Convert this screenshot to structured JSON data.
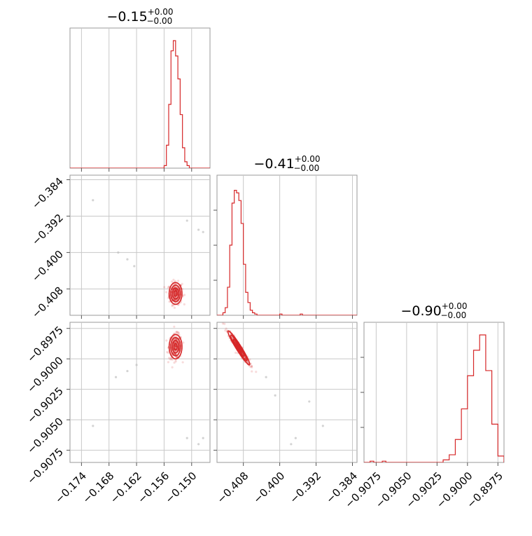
{
  "chart_data": {
    "type": "corner",
    "color": "#d62728",
    "parameters": [
      {
        "title_value": "−0.15",
        "title_upper": "+0.00",
        "title_lower": "−0.00",
        "range": [
          -0.1765,
          -0.146
        ],
        "ticks": [
          -0.174,
          -0.168,
          -0.162,
          -0.156,
          -0.15
        ],
        "tick_labels": [
          "−0.174",
          "−0.168",
          "−0.162",
          "−0.156",
          "−0.150"
        ]
      },
      {
        "title_value": "−0.41",
        "title_upper": "+0.00",
        "title_lower": "−0.00",
        "range": [
          -0.4138,
          -0.383
        ],
        "ticks": [
          -0.408,
          -0.4,
          -0.392,
          -0.384
        ],
        "tick_labels": [
          "−0.408",
          "−0.400",
          "−0.392",
          "−0.384"
        ]
      },
      {
        "title_value": "−0.90",
        "title_upper": "+0.00",
        "title_lower": "−0.00",
        "range": [
          -0.9085,
          -0.897
        ],
        "ticks": [
          -0.9075,
          -0.905,
          -0.9025,
          -0.9,
          -0.8975
        ],
        "tick_labels": [
          "−0.9075",
          "−0.9050",
          "−0.9025",
          "−0.9000",
          "−0.8975"
        ]
      }
    ],
    "diagonal_histograms": [
      {
        "param": 0,
        "bin_edges": [
          -0.1765,
          -0.156,
          -0.1555,
          -0.155,
          -0.1545,
          -0.154,
          -0.1535,
          -0.153,
          -0.1525,
          -0.152,
          -0.1515,
          -0.151,
          -0.1505,
          -0.146
        ],
        "counts": [
          0.0,
          0.02,
          0.18,
          0.5,
          0.92,
          1.0,
          0.88,
          0.7,
          0.42,
          0.16,
          0.05,
          0.02,
          0.0
        ]
      },
      {
        "param": 1,
        "bin_edges": [
          -0.4138,
          -0.4125,
          -0.412,
          -0.4115,
          -0.411,
          -0.4105,
          -0.41,
          -0.4095,
          -0.409,
          -0.4085,
          -0.408,
          -0.4075,
          -0.407,
          -0.4065,
          -0.406,
          -0.4055,
          -0.405,
          -0.4,
          -0.3995,
          -0.3955,
          -0.395,
          -0.383
        ],
        "counts": [
          0.0,
          0.02,
          0.06,
          0.22,
          0.55,
          0.88,
          0.98,
          0.96,
          0.9,
          0.72,
          0.4,
          0.18,
          0.1,
          0.04,
          0.02,
          0.01,
          0.0,
          0.01,
          0.0,
          0.01,
          0.0
        ]
      },
      {
        "param": 2,
        "bin_edges": [
          -0.9085,
          -0.908,
          -0.9077,
          -0.907,
          -0.9067,
          -0.902,
          -0.9015,
          -0.901,
          -0.9005,
          -0.9,
          -0.8995,
          -0.899,
          -0.8985,
          -0.898,
          -0.8975,
          -0.897
        ],
        "counts": [
          0.0,
          0.01,
          0.0,
          0.01,
          0.0,
          0.02,
          0.06,
          0.18,
          0.42,
          0.68,
          0.88,
          1.0,
          0.72,
          0.3,
          0.05,
          0.0
        ]
      }
    ],
    "scatter_panels": [
      {
        "x_param": 0,
        "y_param": 1,
        "center": [
          -0.1535,
          -0.409
        ],
        "std": [
          0.0007,
          0.0012
        ],
        "rho": 0.0,
        "outliers": [
          [
            -0.1715,
            -0.3885
          ],
          [
            -0.166,
            -0.4
          ],
          [
            -0.164,
            -0.4015
          ],
          [
            -0.1625,
            -0.403
          ],
          [
            -0.151,
            -0.393
          ],
          [
            -0.1485,
            -0.395
          ],
          [
            -0.1475,
            -0.3955
          ]
        ]
      },
      {
        "x_param": 0,
        "y_param": 2,
        "center": [
          -0.1535,
          -0.899
        ],
        "std": [
          0.0007,
          0.0005
        ],
        "rho": 0.0,
        "outliers": [
          [
            -0.1715,
            -0.9055
          ],
          [
            -0.1665,
            -0.9015
          ],
          [
            -0.164,
            -0.901
          ],
          [
            -0.162,
            -0.9005
          ],
          [
            -0.151,
            -0.9065
          ],
          [
            -0.1485,
            -0.907
          ],
          [
            -0.1475,
            -0.9065
          ]
        ]
      },
      {
        "x_param": 1,
        "y_param": 2,
        "center": [
          -0.409,
          -0.8991
        ],
        "std": [
          0.0012,
          0.0007
        ],
        "rho": -0.96,
        "outliers": [
          [
            -0.403,
            -0.9015
          ],
          [
            -0.401,
            -0.903
          ],
          [
            -0.3975,
            -0.907
          ],
          [
            -0.3965,
            -0.9065
          ],
          [
            -0.3935,
            -0.9035
          ],
          [
            -0.3905,
            -0.9055
          ]
        ]
      }
    ]
  }
}
